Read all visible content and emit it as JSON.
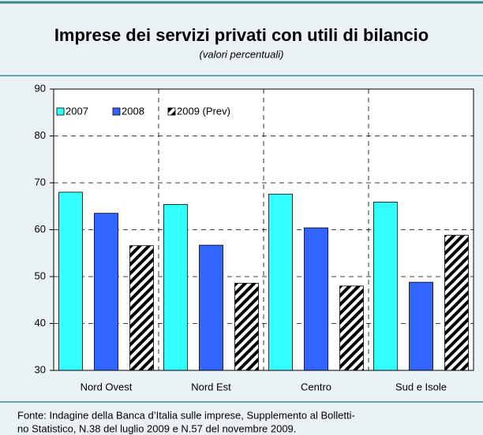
{
  "chart_data": {
    "type": "bar",
    "title": "Imprese dei servizi privati con utili di bilancio",
    "subtitle": "(valori percentuali)",
    "categories": [
      "Nord Ovest",
      "Nord Est",
      "Centro",
      "Sud e Isole"
    ],
    "series": [
      {
        "name": "2007",
        "color": "#33ffff",
        "values": [
          68,
          65.4,
          67.6,
          65.9
        ]
      },
      {
        "name": "2008",
        "color": "#3366ff",
        "values": [
          63.5,
          56.7,
          60.4,
          48.8
        ]
      },
      {
        "name": "2009 (Prev)",
        "color": "#000000",
        "pattern": "diagonal",
        "values": [
          56.6,
          48.6,
          48,
          58.8
        ]
      }
    ],
    "ylim": [
      30,
      90
    ],
    "yticks": [
      30,
      40,
      50,
      60,
      70,
      80,
      90
    ],
    "grid": true,
    "source": [
      "Fonte: Indagine della Banca d’Italia sulle imprese, Supplemento al Bolletti-",
      "no Statistico, N.38 del luglio 2009 e N.57 del novembre 2009."
    ]
  }
}
